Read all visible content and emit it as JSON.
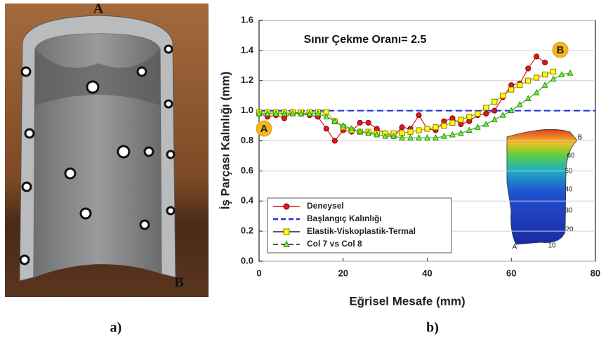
{
  "photo": {
    "label_top": "A",
    "label_bottom": "B"
  },
  "panel_labels": [
    "a)",
    "b)"
  ],
  "chart_data": {
    "type": "line",
    "x_label": "Eğrisel Mesafe (mm)",
    "y_label": "İş Parçası Kalınlığı (mm)",
    "annotations": {
      "ratio": "Sınır Çekme Oranı= 2.5",
      "point_a": "A",
      "point_b": "B"
    },
    "inset_labels": [
      "B",
      "60",
      "50",
      "40",
      "30",
      "20",
      "A",
      "10"
    ],
    "xlim": [
      0,
      80
    ],
    "xticks": [
      0,
      20,
      40,
      60,
      80
    ],
    "ylim": [
      0,
      1.6
    ],
    "yticks": [
      {
        "value": 0,
        "label": "0.0"
      },
      0.2,
      0.4,
      0.6,
      0.8,
      {
        "value": 1,
        "label": "1.0"
      },
      1.2,
      1.4,
      1.6
    ],
    "grid": true,
    "legend": "lower-left",
    "series": [
      {
        "name": "Deneysel",
        "color": "#e0161b",
        "marker": "circle",
        "dashed": false,
        "x": [
          0,
          2,
          4,
          6,
          8,
          10,
          12,
          14,
          16,
          18,
          20,
          22,
          24,
          26,
          28,
          30,
          32,
          34,
          36,
          38,
          40,
          42,
          44,
          46,
          48,
          50,
          52,
          54,
          56,
          58,
          60,
          62,
          64,
          66,
          68
        ],
        "values": [
          0.98,
          0.96,
          0.97,
          0.95,
          0.99,
          0.98,
          0.97,
          0.96,
          0.88,
          0.8,
          0.87,
          0.86,
          0.92,
          0.92,
          0.88,
          0.85,
          0.83,
          0.89,
          0.88,
          0.97,
          0.88,
          0.87,
          0.93,
          0.95,
          0.91,
          0.93,
          0.97,
          0.98,
          1.0,
          1.09,
          1.17,
          1.18,
          1.28,
          1.36,
          1.32
        ]
      },
      {
        "name": "Başlangıç Kalınlığı",
        "color": "#1f2de0",
        "marker": "none",
        "dashed": true,
        "x": [
          0,
          80
        ],
        "values": [
          1,
          1
        ]
      },
      {
        "name": "Elastik-Viskoplastik-Termal",
        "color": "#ffff00",
        "marker": "square",
        "dashed": false,
        "x": [
          0,
          2,
          4,
          6,
          8,
          10,
          12,
          14,
          16,
          18,
          20,
          22,
          24,
          26,
          28,
          30,
          32,
          34,
          36,
          38,
          40,
          42,
          44,
          46,
          48,
          50,
          52,
          54,
          56,
          58,
          60,
          62,
          64,
          66,
          68,
          70
        ],
        "values": [
          0.99,
          0.99,
          0.99,
          0.99,
          0.99,
          0.99,
          0.99,
          0.99,
          0.99,
          0.93,
          0.89,
          0.87,
          0.86,
          0.86,
          0.85,
          0.85,
          0.85,
          0.85,
          0.86,
          0.87,
          0.88,
          0.89,
          0.9,
          0.92,
          0.94,
          0.96,
          0.98,
          1.02,
          1.06,
          1.1,
          1.14,
          1.17,
          1.2,
          1.22,
          1.24,
          1.26
        ]
      },
      {
        "name": "Col 7 vs Col 8",
        "color": "#66ff33",
        "marker": "triangle",
        "dashed": true,
        "x": [
          0,
          2,
          4,
          6,
          8,
          10,
          12,
          14,
          16,
          18,
          20,
          22,
          24,
          26,
          28,
          30,
          32,
          34,
          36,
          38,
          40,
          42,
          44,
          46,
          48,
          50,
          52,
          54,
          56,
          58,
          60,
          62,
          64,
          66,
          68,
          70,
          72,
          74
        ],
        "values": [
          0.98,
          0.98,
          0.98,
          0.98,
          0.98,
          0.98,
          0.98,
          0.98,
          0.96,
          0.93,
          0.9,
          0.88,
          0.86,
          0.85,
          0.84,
          0.83,
          0.83,
          0.82,
          0.82,
          0.82,
          0.82,
          0.82,
          0.83,
          0.84,
          0.85,
          0.87,
          0.89,
          0.91,
          0.94,
          0.97,
          1.0,
          1.04,
          1.08,
          1.12,
          1.17,
          1.21,
          1.24,
          1.25
        ]
      }
    ]
  }
}
